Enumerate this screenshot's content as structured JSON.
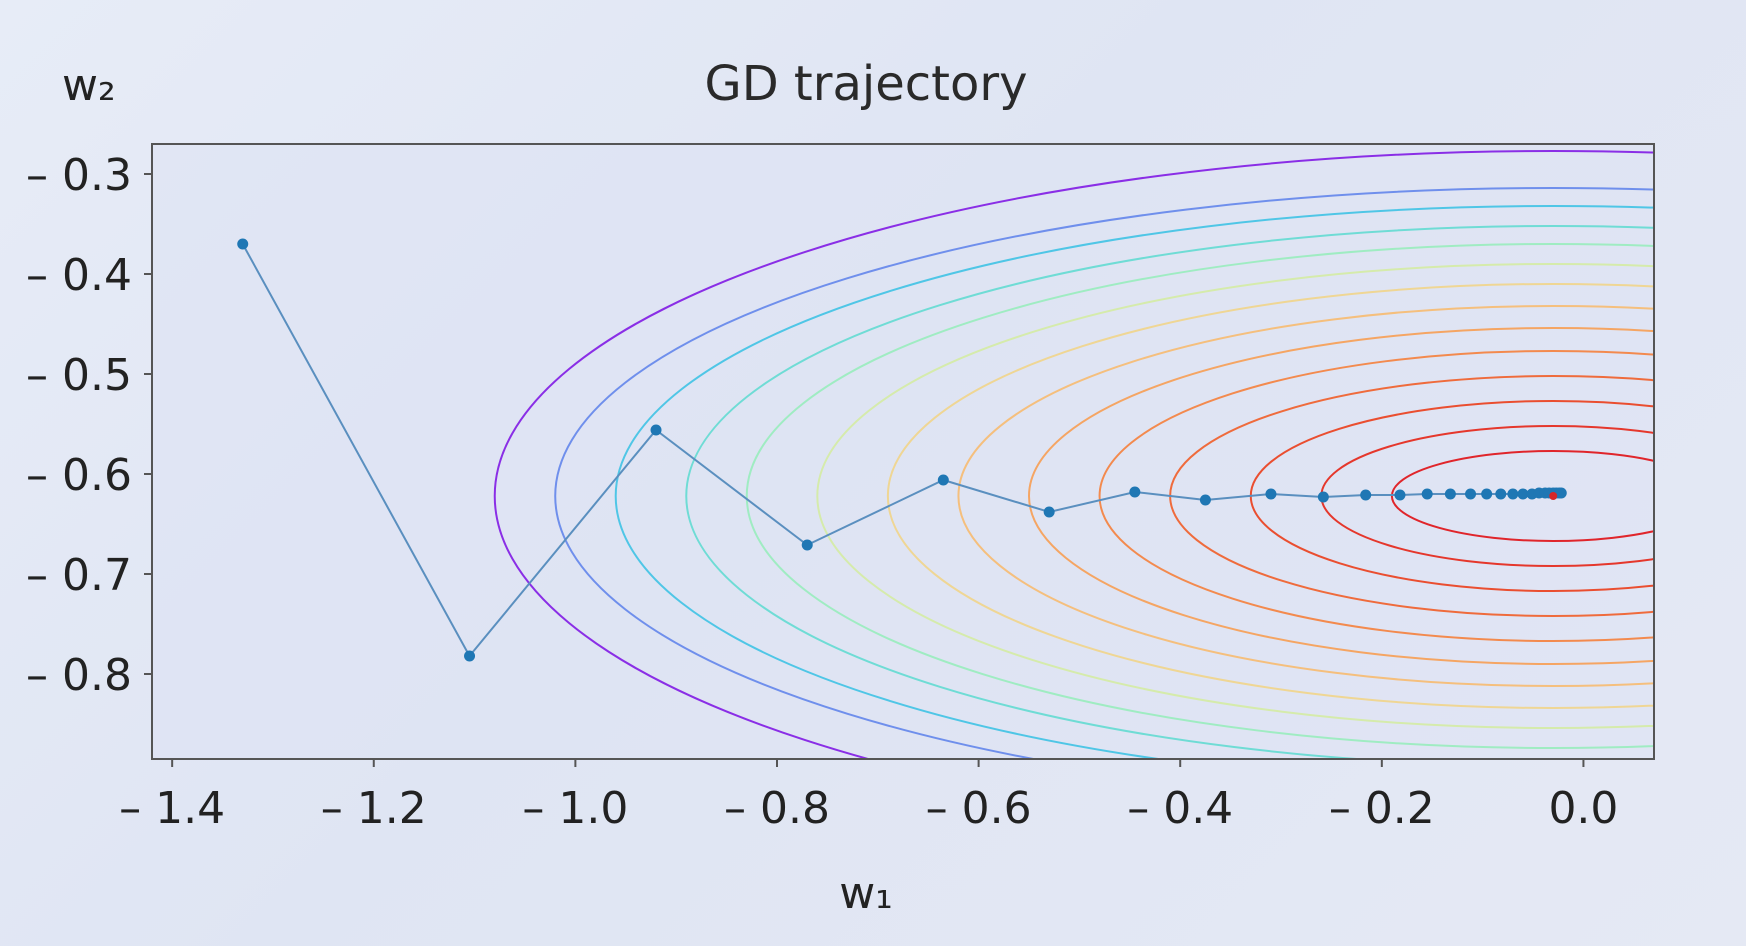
{
  "chart_data": {
    "type": "line",
    "title": "GD trajectory",
    "xlabel": "w₁",
    "ylabel": "w₂",
    "xlim": [
      -1.42,
      0.07
    ],
    "ylim": [
      -0.885,
      -0.27
    ],
    "xticks": [
      -1.4,
      -1.2,
      -1.0,
      -0.8,
      -0.6,
      -0.4,
      -0.2,
      0.0
    ],
    "xtick_labels": [
      "– 1.4",
      "– 1.2",
      "– 1.0",
      "– 0.8",
      "– 0.6",
      "– 0.4",
      "– 0.2",
      "0.0"
    ],
    "yticks": [
      -0.3,
      -0.4,
      -0.5,
      -0.6,
      -0.7,
      -0.8
    ],
    "ytick_labels": [
      "– 0.3",
      "– 0.4",
      "– 0.5",
      "– 0.6",
      "– 0.7",
      "– 0.8"
    ],
    "grid": false,
    "trajectory": {
      "color": "#1f77b4",
      "line_color": "#5a8fbf",
      "x": [
        -1.33,
        -1.105,
        -0.92,
        -0.77,
        -0.635,
        -0.53,
        -0.445,
        -0.375,
        -0.31,
        -0.258,
        -0.216,
        -0.182,
        -0.155,
        -0.132,
        -0.112,
        -0.096,
        -0.082,
        -0.07,
        -0.06,
        -0.051,
        -0.044,
        -0.038,
        -0.034,
        -0.03,
        -0.027,
        -0.024,
        -0.022
      ],
      "y": [
        -0.37,
        -0.782,
        -0.556,
        -0.671,
        -0.606,
        -0.638,
        -0.618,
        -0.626,
        -0.62,
        -0.623,
        -0.621,
        -0.621,
        -0.62,
        -0.62,
        -0.62,
        -0.62,
        -0.62,
        -0.62,
        -0.62,
        -0.62,
        -0.619,
        -0.619,
        -0.619,
        -0.619,
        -0.619,
        -0.619,
        -0.619
      ]
    },
    "minimum": {
      "x": -0.03,
      "y": -0.622,
      "color": "#d62728"
    },
    "contours": {
      "center": [
        -0.03,
        -0.622
      ],
      "semi_axes_w1": [
        0.16,
        0.23,
        0.3,
        0.38,
        0.45,
        0.52,
        0.59,
        0.66,
        0.73,
        0.8,
        0.86,
        0.93,
        0.99,
        1.05
      ],
      "semi_axes_w2": [
        0.045,
        0.07,
        0.095,
        0.12,
        0.145,
        0.168,
        0.19,
        0.212,
        0.232,
        0.252,
        0.27,
        0.29,
        0.308,
        0.345
      ],
      "colors": [
        "#e0252b",
        "#e5372c",
        "#ea4e30",
        "#ef6b3c",
        "#f38a4e",
        "#f5a563",
        "#f5bf7d",
        "#efd694",
        "#d5ebab",
        "#9fecc2",
        "#6fdcd5",
        "#4fc6e6",
        "#6f8fec",
        "#8a2ee6"
      ]
    }
  }
}
